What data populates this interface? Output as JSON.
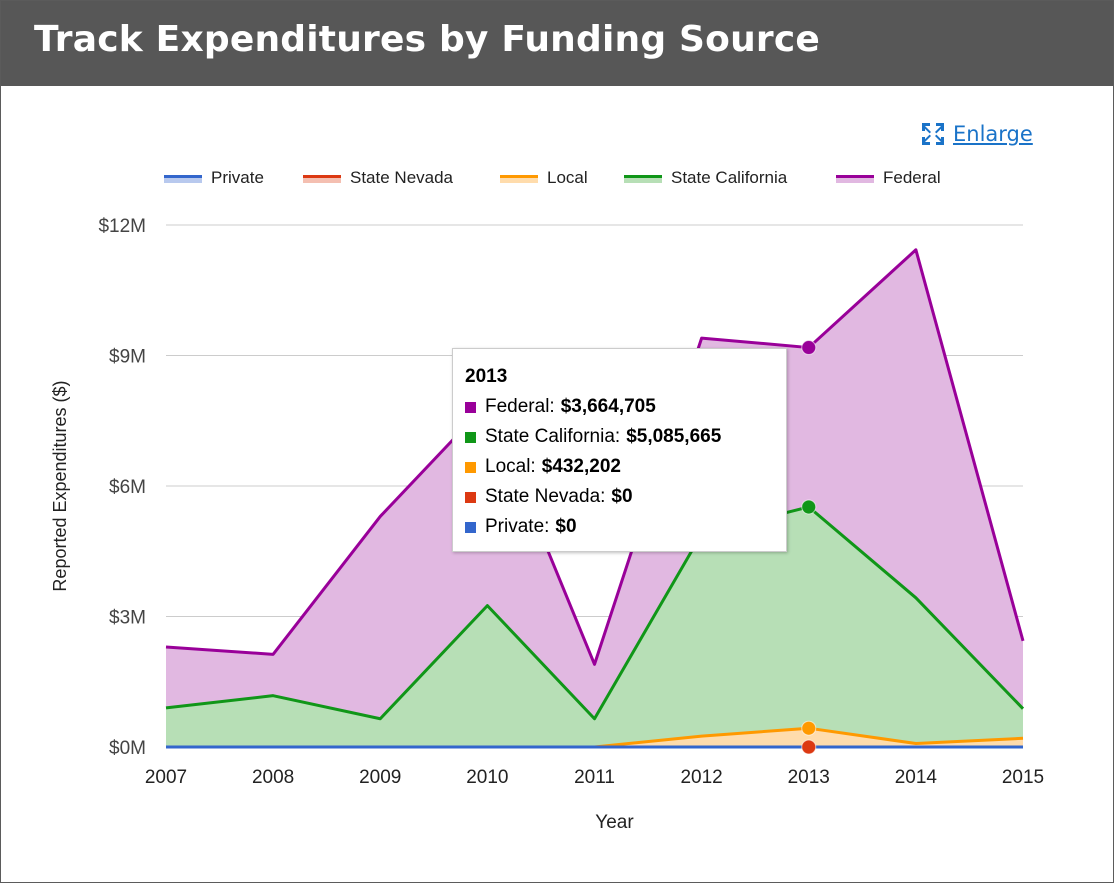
{
  "header": {
    "title": "Track Expenditures by Funding Source"
  },
  "enlarge": {
    "label": "Enlarge",
    "icon": "expand-icon"
  },
  "legend": {
    "items": [
      {
        "label": "Private",
        "color": "#3366cc"
      },
      {
        "label": "State Nevada",
        "color": "#dc3912"
      },
      {
        "label": "Local",
        "color": "#ff9900"
      },
      {
        "label": "State California",
        "color": "#109618"
      },
      {
        "label": "Federal",
        "color": "#990099"
      }
    ]
  },
  "tooltip": {
    "title": "2013",
    "rows": [
      {
        "label": "Federal:",
        "value": "$3,664,705",
        "color": "#990099"
      },
      {
        "label": "State California:",
        "value": "$5,085,665",
        "color": "#109618"
      },
      {
        "label": "Local:",
        "value": "$432,202",
        "color": "#ff9900"
      },
      {
        "label": "State Nevada:",
        "value": "$0",
        "color": "#dc3912"
      },
      {
        "label": "Private:",
        "value": "$0",
        "color": "#3366cc"
      }
    ]
  },
  "chart_data": {
    "type": "area",
    "stacked": true,
    "title": "",
    "xlabel": "Year",
    "ylabel": "Reported Expenditures ($)",
    "categories": [
      "2007",
      "2008",
      "2009",
      "2010",
      "2011",
      "2012",
      "2013",
      "2014",
      "2015"
    ],
    "ylim": [
      0,
      12000000
    ],
    "yticks": [
      {
        "value": 0,
        "label": "$0M"
      },
      {
        "value": 3000000,
        "label": "$3M"
      },
      {
        "value": 6000000,
        "label": "$6M"
      },
      {
        "value": 9000000,
        "label": "$9M"
      },
      {
        "value": 12000000,
        "label": "$12M"
      }
    ],
    "grid": true,
    "legend_position": "top",
    "highlighted_category": "2013",
    "series": [
      {
        "name": "Private",
        "color": "#3366cc",
        "values": [
          0,
          0,
          0,
          0,
          0,
          0,
          0,
          0,
          0
        ]
      },
      {
        "name": "State Nevada",
        "color": "#dc3912",
        "values": [
          0,
          0,
          0,
          0,
          0,
          0,
          0,
          0,
          0
        ]
      },
      {
        "name": "Local",
        "color": "#ff9900",
        "values": [
          0,
          0,
          0,
          0,
          0,
          250000,
          432202,
          80000,
          200000
        ]
      },
      {
        "name": "State California",
        "color": "#109618",
        "values": [
          900000,
          1180000,
          650000,
          3250000,
          650000,
          4650000,
          5085665,
          3350000,
          680000
        ]
      },
      {
        "name": "Federal",
        "color": "#990099",
        "values": [
          1400000,
          950000,
          4650000,
          4650000,
          1250000,
          4500000,
          3664705,
          8000000,
          1560000
        ]
      }
    ]
  }
}
